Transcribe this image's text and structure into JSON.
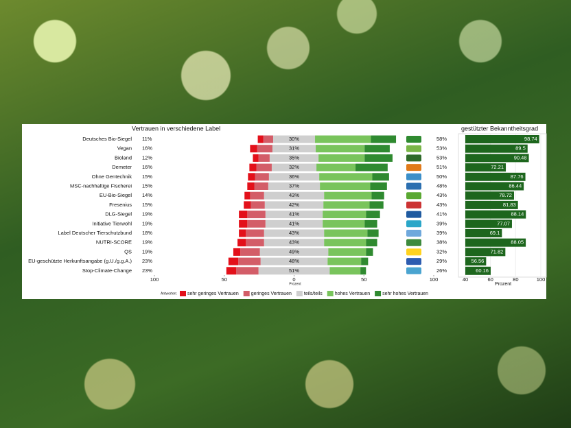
{
  "chart_data": [
    {
      "type": "diverging_bar",
      "title": "Vertrauen in verschiedene Label",
      "categories": [
        "Deutsches Bio-Siegel",
        "Vegan",
        "Bioland",
        "Demeter",
        "Ohne Gentechnik",
        "MSC-nachhaltige Fischerei",
        "EU-Bio-Siegel",
        "Fresenius",
        "DLG-Siegel",
        "Initiative Tierwohl",
        "Label Deutscher Tierschutzbund",
        "NUTRI-SCORE",
        "QS",
        "EU-geschützte Herkunftsangabe (g.U./g.g.A.)",
        "Stop-Climate-Change"
      ],
      "series": [
        {
          "name": "sehr geringes Vertrauen",
          "color": "#e3101a",
          "side": "low",
          "values": [
            4,
            5,
            4,
            5,
            5,
            5,
            4,
            5,
            6,
            6,
            5,
            6,
            5,
            7,
            7
          ]
        },
        {
          "name": "geringes Vertrauen",
          "color": "#d35d68",
          "side": "low",
          "values": [
            7,
            11,
            8,
            11,
            10,
            10,
            10,
            10,
            13,
            13,
            13,
            13,
            14,
            16,
            16
          ]
        },
        {
          "name": "teils/teils",
          "color": "#cfcfcf",
          "side": "neutral",
          "values": [
            30,
            31,
            35,
            32,
            36,
            37,
            43,
            42,
            41,
            41,
            43,
            43,
            49,
            48,
            51
          ],
          "value_labels": [
            "30%",
            "31%",
            "35%",
            "32%",
            "36%",
            "37%",
            "43%",
            "42%",
            "41%",
            "41%",
            "43%",
            "43%",
            "49%",
            "48%",
            "51%"
          ]
        },
        {
          "name": "hohes Vertrauen",
          "color": "#79c45c",
          "side": "high",
          "values": [
            40,
            35,
            33,
            28,
            38,
            36,
            34,
            33,
            31,
            30,
            31,
            30,
            27,
            24,
            22
          ]
        },
        {
          "name": "sehr hohes Vertrauen",
          "color": "#2f8a30",
          "side": "high",
          "values": [
            18,
            18,
            20,
            23,
            12,
            12,
            9,
            10,
            10,
            9,
            8,
            8,
            5,
            5,
            4
          ]
        }
      ],
      "low_totals": [
        11,
        16,
        12,
        16,
        15,
        15,
        14,
        15,
        19,
        19,
        18,
        19,
        19,
        23,
        23
      ],
      "low_total_labels": [
        "11%",
        "16%",
        "12%",
        "16%",
        "15%",
        "15%",
        "14%",
        "15%",
        "19%",
        "19%",
        "18%",
        "19%",
        "19%",
        "23%",
        "23%"
      ],
      "high_totals": [
        58,
        53,
        53,
        51,
        50,
        48,
        43,
        43,
        41,
        39,
        39,
        38,
        32,
        29,
        26
      ],
      "high_total_labels": [
        "58%",
        "53%",
        "53%",
        "51%",
        "50%",
        "48%",
        "43%",
        "43%",
        "41%",
        "39%",
        "39%",
        "38%",
        "32%",
        "29%",
        "26%"
      ],
      "xlim": [
        -100,
        100
      ],
      "xticks": [
        {
          "value": -100,
          "label": "100"
        },
        {
          "value": -50,
          "label": "50"
        },
        0,
        50,
        100
      ],
      "xlabel": "Prozent",
      "legend_title": "Antworten:"
    },
    {
      "type": "hbar",
      "title": "gestützter Bekanntheitsgrad",
      "color": "#1d661d",
      "values": [
        98.74,
        89.5,
        90.48,
        72.21,
        87.76,
        86.44,
        78.72,
        81.83,
        88.14,
        77.07,
        69.1,
        88.05,
        71.82,
        56.56,
        60.16
      ],
      "xlim": [
        40,
        100
      ],
      "xticks": [
        40,
        60,
        80,
        100
      ],
      "xlabel": "Prozent",
      "grid": true
    }
  ]
}
